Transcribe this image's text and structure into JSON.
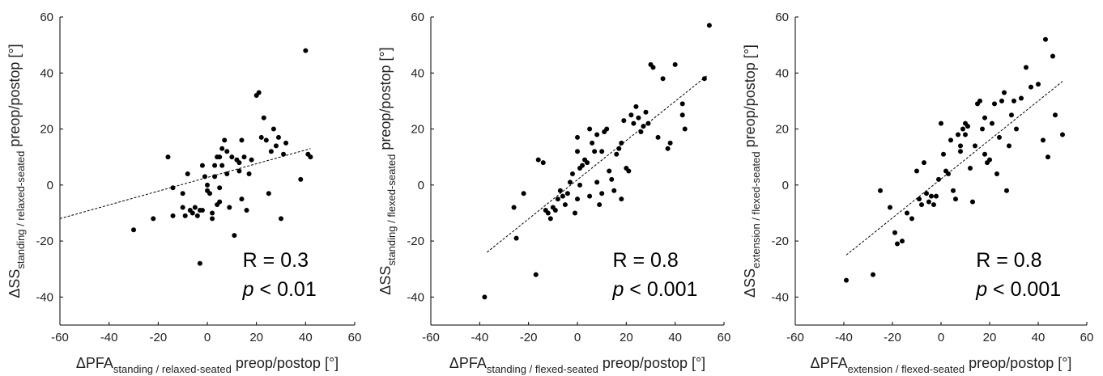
{
  "chart_data": [
    {
      "type": "scatter",
      "title": "",
      "xlabel": {
        "prefix": "ΔPFA",
        "subscript": "standing / relaxed-seated",
        "suffix": " preop/postop [°]"
      },
      "ylabel": {
        "prefix": "ΔSS",
        "subscript": "standing / relaxed-seated",
        "suffix": " preop/postop [°]"
      },
      "xlim": [
        -60,
        60
      ],
      "ylim": [
        -50,
        60
      ],
      "xticks": [
        -60,
        -40,
        -20,
        0,
        20,
        40,
        60
      ],
      "yticks": [
        -40,
        -20,
        0,
        20,
        40,
        60
      ],
      "grid": false,
      "annotation": {
        "r_text": "R = 0.3",
        "p_symbol": "p",
        "p_text": " < 0.01"
      },
      "fit_line": {
        "x": [
          -60,
          42
        ],
        "y": [
          -12,
          13
        ]
      },
      "points": {
        "x": [
          -30,
          -22,
          -16,
          -14,
          -14,
          -10,
          -10,
          -9,
          -8,
          -7,
          -6,
          -5,
          -4,
          -3,
          -2,
          -2,
          -1,
          0,
          0,
          1,
          2,
          2,
          3,
          3,
          4,
          4,
          5,
          5,
          5,
          6,
          6,
          7,
          8,
          8,
          9,
          10,
          11,
          12,
          13,
          13,
          14,
          14,
          15,
          16,
          17,
          18,
          20,
          21,
          22,
          23,
          24,
          25,
          26,
          27,
          28,
          29,
          30,
          31,
          32,
          38,
          40,
          42,
          41,
          -3
        ],
        "y": [
          -16,
          -12,
          10,
          -11,
          -1,
          -3,
          -8,
          -11,
          4,
          -9,
          -10,
          -8,
          -11,
          -9,
          -9,
          7,
          3,
          -2,
          0,
          -3,
          -10,
          -12,
          7,
          3,
          10,
          -7,
          -1,
          -6,
          10,
          13,
          7,
          16,
          12,
          4,
          -8,
          10,
          -18,
          9,
          8,
          5,
          16,
          -5,
          10,
          -9,
          4,
          9,
          32,
          33,
          17,
          24,
          16,
          -3,
          12,
          20,
          14,
          17,
          -12,
          11,
          15,
          2,
          48,
          10,
          11,
          -28
        ]
      }
    },
    {
      "type": "scatter",
      "title": "",
      "xlabel": {
        "prefix": "ΔPFA",
        "subscript": "standing / flexed-seated",
        "suffix": " preop/postop [°]"
      },
      "ylabel": {
        "prefix": "ΔSS",
        "subscript": "standing / flexed-seated",
        "suffix": " preop/postop [°]"
      },
      "xlim": [
        -60,
        60
      ],
      "ylim": [
        -50,
        60
      ],
      "xticks": [
        -60,
        -40,
        -20,
        0,
        20,
        40,
        60
      ],
      "yticks": [
        -40,
        -20,
        0,
        20,
        40,
        60
      ],
      "grid": false,
      "annotation": {
        "r_text": "R = 0.8",
        "p_symbol": "p",
        "p_text": " < 0.001"
      },
      "fit_line": {
        "x": [
          -37,
          53
        ],
        "y": [
          -24,
          39
        ]
      },
      "points": {
        "x": [
          -38,
          -26,
          -25,
          -22,
          -17,
          -16,
          -14,
          -13,
          -12,
          -11,
          -10,
          -9,
          -8,
          -7,
          -6,
          -5,
          -4,
          -3,
          -2,
          -1,
          0,
          0,
          0,
          1,
          1,
          2,
          3,
          4,
          5,
          5,
          6,
          7,
          8,
          8,
          9,
          10,
          10,
          11,
          12,
          13,
          14,
          15,
          16,
          17,
          18,
          18,
          19,
          20,
          21,
          22,
          23,
          24,
          25,
          26,
          27,
          28,
          29,
          30,
          31,
          33,
          35,
          37,
          38,
          40,
          43,
          43,
          44,
          52,
          54
        ],
        "y": [
          -40,
          -8,
          -19,
          -3,
          -32,
          9,
          8,
          -9,
          -10,
          -12,
          -8,
          -9,
          -5,
          -2,
          -4,
          -7,
          -3,
          1,
          4,
          -10,
          -5,
          12,
          17,
          6,
          0,
          7,
          9,
          8,
          20,
          -4,
          15,
          12,
          18,
          1,
          -7,
          -3,
          12,
          19,
          20,
          5,
          2,
          -2,
          11,
          13,
          -5,
          15,
          23,
          6,
          5,
          25,
          22,
          28,
          24,
          19,
          21,
          26,
          22,
          43,
          42,
          17,
          38,
          13,
          15,
          43,
          25,
          29,
          20,
          38,
          57
        ]
      }
    },
    {
      "type": "scatter",
      "title": "",
      "xlabel": {
        "prefix": "ΔPFA",
        "subscript": "extension / flexed-seated",
        "suffix": " preop/postop [°]"
      },
      "ylabel": {
        "prefix": "ΔSS",
        "subscript": "extension / flexed-seated",
        "suffix": " preop/postop [°]"
      },
      "xlim": [
        -60,
        60
      ],
      "ylim": [
        -50,
        60
      ],
      "xticks": [
        -60,
        -40,
        -20,
        0,
        20,
        40,
        60
      ],
      "yticks": [
        -40,
        -20,
        0,
        20,
        40,
        60
      ],
      "grid": false,
      "annotation": {
        "r_text": "R = 0.8",
        "p_symbol": "p",
        "p_text": " < 0.001"
      },
      "fit_line": {
        "x": [
          -39,
          50
        ],
        "y": [
          -25,
          37
        ]
      },
      "points": {
        "x": [
          -39,
          -28,
          -25,
          -21,
          -19,
          -18,
          -16,
          -14,
          -12,
          -10,
          -9,
          -8,
          -7,
          -6,
          -5,
          -4,
          -3,
          -2,
          -1,
          0,
          1,
          2,
          3,
          4,
          5,
          6,
          7,
          8,
          8,
          9,
          10,
          10,
          11,
          12,
          13,
          14,
          15,
          16,
          17,
          18,
          18,
          19,
          20,
          21,
          22,
          23,
          24,
          25,
          26,
          27,
          28,
          29,
          30,
          31,
          33,
          35,
          37,
          40,
          42,
          43,
          44,
          46,
          47,
          50
        ],
        "y": [
          -34,
          -32,
          -2,
          -8,
          -17,
          -21,
          -20,
          -10,
          -12,
          5,
          -5,
          -7,
          8,
          -3,
          -6,
          -4,
          -7,
          -4,
          2,
          22,
          11,
          5,
          4,
          16,
          -2,
          -5,
          18,
          12,
          14,
          20,
          22,
          18,
          21,
          6,
          -6,
          14,
          29,
          30,
          20,
          24,
          11,
          8,
          9,
          22,
          29,
          4,
          17,
          30,
          33,
          -2,
          14,
          25,
          30,
          20,
          31,
          42,
          35,
          36,
          16,
          52,
          10,
          46,
          25,
          18
        ]
      }
    }
  ]
}
